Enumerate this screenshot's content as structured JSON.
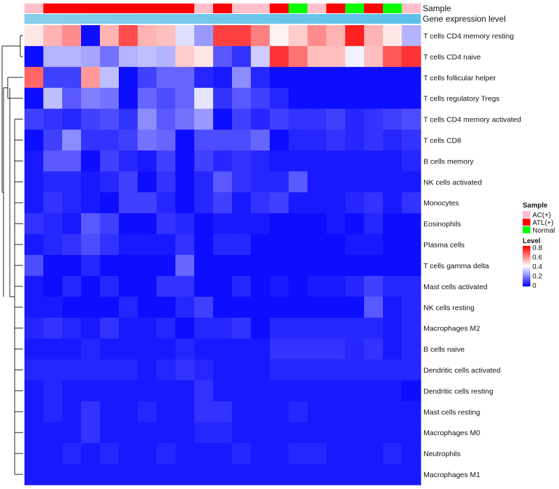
{
  "chart_data": {
    "type": "heatmap",
    "annotation_titles": {
      "sample": "Sample",
      "level": "Gene expression level"
    },
    "sample_groups": [
      "AC(+)",
      "ATL(+)",
      "ATL(+)",
      "ATL(+)",
      "ATL(+)",
      "ATL(+)",
      "ATL(+)",
      "ATL(+)",
      "ATL(+)",
      "AC(+)",
      "ATL(+)",
      "AC(+)",
      "AC(+)",
      "ATL(+)",
      "Normal",
      "AC(+)",
      "ATL(+)",
      "Normal",
      "ATL(+)",
      "Normal",
      "AC(+)"
    ],
    "rows": [
      "T cells CD4 memory resting",
      "T cells CD4 naive",
      "T cells follicular helper",
      "T cells regulatory  Tregs",
      "T cells CD4 memory activated",
      "T cells CD8",
      "B cells memory",
      "NK cells activated",
      "Monocytes",
      "Eosinophils",
      "Plasma cells",
      "T cells gamma delta",
      "Mast cells activated",
      "NK cells resting",
      "Macrophages M2",
      "B cells naive",
      "Dendritic cells activated",
      "Dendritic cells resting",
      "Mast cells resting",
      "Macrophages M0",
      "Neutrophils",
      "Macrophages M1"
    ],
    "values": [
      [
        0.44,
        0.52,
        0.58,
        0.02,
        0.52,
        0.68,
        0.52,
        0.5,
        0.35,
        0.24,
        0.7,
        0.7,
        0.6,
        0.42,
        0.48,
        0.58,
        0.52,
        0.75,
        0.52,
        0.44,
        0.28
      ],
      [
        0.02,
        0.28,
        0.28,
        0.26,
        0.18,
        0.28,
        0.3,
        0.28,
        0.48,
        0.44,
        0.14,
        0.08,
        0.32,
        0.72,
        0.62,
        0.5,
        0.5,
        0.38,
        0.5,
        0.66,
        0.72
      ],
      [
        0.64,
        0.1,
        0.1,
        0.56,
        0.3,
        0.02,
        0.1,
        0.16,
        0.16,
        0.06,
        0.04,
        0.22,
        0.06,
        0.02,
        0.02,
        0.02,
        0.02,
        0.02,
        0.02,
        0.02,
        0.02
      ],
      [
        0.02,
        0.3,
        0.14,
        0.2,
        0.18,
        0.02,
        0.16,
        0.12,
        0.16,
        0.36,
        0.08,
        0.14,
        0.1,
        0.06,
        0.02,
        0.02,
        0.02,
        0.02,
        0.02,
        0.02,
        0.02
      ],
      [
        0.1,
        0.08,
        0.06,
        0.1,
        0.12,
        0.08,
        0.22,
        0.14,
        0.18,
        0.24,
        0.02,
        0.1,
        0.06,
        0.1,
        0.08,
        0.08,
        0.1,
        0.06,
        0.08,
        0.1,
        0.12
      ],
      [
        0.02,
        0.1,
        0.22,
        0.08,
        0.08,
        0.1,
        0.18,
        0.16,
        0.02,
        0.12,
        0.12,
        0.12,
        0.16,
        0.02,
        0.06,
        0.06,
        0.08,
        0.06,
        0.08,
        0.06,
        0.08
      ],
      [
        0.04,
        0.14,
        0.14,
        0.02,
        0.1,
        0.06,
        0.04,
        0.1,
        0.02,
        0.1,
        0.06,
        0.08,
        0.06,
        0.04,
        0.04,
        0.04,
        0.04,
        0.04,
        0.04,
        0.04,
        0.06
      ],
      [
        0.04,
        0.06,
        0.06,
        0.04,
        0.06,
        0.1,
        0.02,
        0.08,
        0.02,
        0.06,
        0.14,
        0.08,
        0.06,
        0.06,
        0.14,
        0.04,
        0.04,
        0.04,
        0.04,
        0.04,
        0.04
      ],
      [
        0.04,
        0.08,
        0.06,
        0.04,
        0.02,
        0.1,
        0.1,
        0.06,
        0.02,
        0.06,
        0.1,
        0.04,
        0.08,
        0.1,
        0.04,
        0.04,
        0.04,
        0.06,
        0.08,
        0.04,
        0.08
      ],
      [
        0.08,
        0.06,
        0.04,
        0.14,
        0.1,
        0.02,
        0.02,
        0.08,
        0.06,
        0.02,
        0.04,
        0.04,
        0.04,
        0.02,
        0.02,
        0.02,
        0.04,
        0.02,
        0.06,
        0.02,
        0.02
      ],
      [
        0.04,
        0.06,
        0.08,
        0.12,
        0.08,
        0.04,
        0.04,
        0.04,
        0.08,
        0.02,
        0.06,
        0.06,
        0.02,
        0.02,
        0.02,
        0.02,
        0.02,
        0.04,
        0.04,
        0.02,
        0.02
      ],
      [
        0.12,
        0.02,
        0.02,
        0.06,
        0.02,
        0.02,
        0.02,
        0.02,
        0.16,
        0.02,
        0.02,
        0.02,
        0.02,
        0.02,
        0.02,
        0.02,
        0.02,
        0.02,
        0.02,
        0.02,
        0.02
      ],
      [
        0.04,
        0.02,
        0.06,
        0.02,
        0.06,
        0.02,
        0.02,
        0.08,
        0.08,
        0.02,
        0.02,
        0.06,
        0.02,
        0.04,
        0.02,
        0.04,
        0.04,
        0.06,
        0.1,
        0.06,
        0.06
      ],
      [
        0.04,
        0.04,
        0.02,
        0.02,
        0.02,
        0.06,
        0.02,
        0.02,
        0.06,
        0.1,
        0.02,
        0.02,
        0.02,
        0.02,
        0.02,
        0.02,
        0.02,
        0.02,
        0.14,
        0.04,
        0.06
      ],
      [
        0.06,
        0.08,
        0.06,
        0.04,
        0.08,
        0.04,
        0.04,
        0.06,
        0.02,
        0.06,
        0.06,
        0.08,
        0.02,
        0.06,
        0.06,
        0.06,
        0.06,
        0.06,
        0.06,
        0.04,
        0.06
      ],
      [
        0.04,
        0.04,
        0.04,
        0.06,
        0.04,
        0.04,
        0.04,
        0.04,
        0.06,
        0.04,
        0.04,
        0.04,
        0.04,
        0.08,
        0.08,
        0.08,
        0.08,
        0.06,
        0.08,
        0.04,
        0.06
      ],
      [
        0.06,
        0.06,
        0.06,
        0.06,
        0.06,
        0.06,
        0.04,
        0.06,
        0.08,
        0.06,
        0.04,
        0.04,
        0.04,
        0.06,
        0.06,
        0.06,
        0.06,
        0.06,
        0.06,
        0.06,
        0.06
      ],
      [
        0.04,
        0.06,
        0.04,
        0.04,
        0.04,
        0.04,
        0.04,
        0.04,
        0.04,
        0.08,
        0.04,
        0.04,
        0.04,
        0.04,
        0.04,
        0.04,
        0.04,
        0.04,
        0.04,
        0.04,
        0.02
      ],
      [
        0.04,
        0.06,
        0.04,
        0.08,
        0.04,
        0.04,
        0.06,
        0.04,
        0.04,
        0.08,
        0.08,
        0.04,
        0.04,
        0.04,
        0.06,
        0.04,
        0.04,
        0.04,
        0.04,
        0.04,
        0.04
      ],
      [
        0.04,
        0.04,
        0.04,
        0.08,
        0.04,
        0.04,
        0.04,
        0.04,
        0.04,
        0.06,
        0.06,
        0.04,
        0.04,
        0.04,
        0.04,
        0.04,
        0.04,
        0.04,
        0.04,
        0.04,
        0.04
      ],
      [
        0.04,
        0.04,
        0.06,
        0.04,
        0.06,
        0.04,
        0.04,
        0.06,
        0.04,
        0.04,
        0.04,
        0.06,
        0.04,
        0.04,
        0.06,
        0.06,
        0.04,
        0.04,
        0.04,
        0.06,
        0.04
      ],
      [
        0.04,
        0.04,
        0.04,
        0.04,
        0.04,
        0.04,
        0.04,
        0.04,
        0.04,
        0.04,
        0.04,
        0.04,
        0.04,
        0.04,
        0.04,
        0.04,
        0.04,
        0.04,
        0.04,
        0.04,
        0.04
      ]
    ],
    "color_scale": {
      "min": 0,
      "mid": 0.4,
      "max": 0.8,
      "low": "#0000ff",
      "midColor": "#ffffff",
      "high": "#ff0000"
    },
    "level_gradient": [
      "#87ceeb",
      "#5bc0eb"
    ],
    "legend": {
      "placement": "right",
      "sample_title": "Sample",
      "sample_entries": [
        {
          "label": "AC(+)",
          "color": "#ffc0cb"
        },
        {
          "label": "ATL(+)",
          "color": "#ff0000"
        },
        {
          "label": "Normal",
          "color": "#00ff00"
        }
      ],
      "level_title": "Level",
      "level_ticks": [
        "0.8",
        "0.6",
        "0.4",
        "0.2",
        "0"
      ]
    },
    "dendrogram": "row",
    "grid": false
  }
}
